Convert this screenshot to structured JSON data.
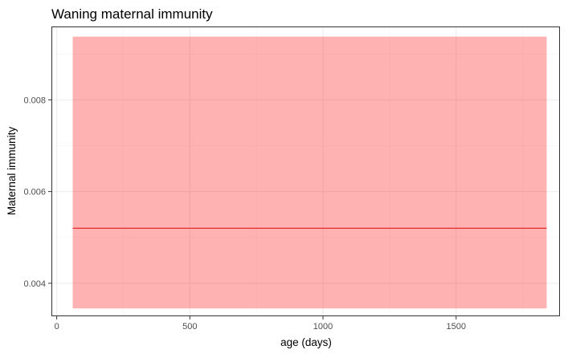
{
  "chart_data": {
    "type": "line",
    "title": "Waning maternal immunity",
    "xlabel": "age (days)",
    "ylabel": "Maternal immunity",
    "xlim": [
      -20,
      1890
    ],
    "ylim": [
      0.00328,
      0.0096
    ],
    "x_ticks": [
      0,
      500,
      1000,
      1500
    ],
    "x_tick_labels": [
      "0",
      "500",
      "1000",
      "1500"
    ],
    "y_ticks": [
      0.004,
      0.006,
      0.008
    ],
    "y_tick_labels": [
      "0.004",
      "0.006",
      "0.008"
    ],
    "grid": true,
    "legend": "none",
    "series": [
      {
        "x": [
          60,
          1840
        ],
        "y": [
          0.0052,
          0.0052
        ],
        "ribbon_lower": [
          0.00345,
          0.00345
        ],
        "ribbon_upper": [
          0.00938,
          0.00938
        ],
        "line_color": "#e31a1c",
        "ribbon_color": "#ff0000",
        "ribbon_opacity": 0.3
      }
    ],
    "colors": {
      "panel_background": "#ffffff",
      "panel_border": "#333333",
      "grid_major": "#ebebeb",
      "grid_minor": "#f5f5f5"
    }
  }
}
